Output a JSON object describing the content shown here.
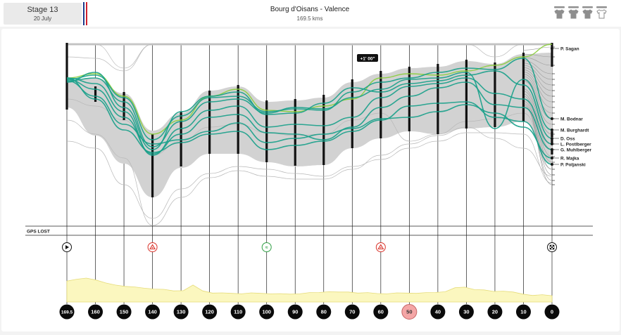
{
  "stage": {
    "name": "Stage 13",
    "date": "20 July"
  },
  "route": {
    "title": "Bourg d'Oisans - Valence",
    "distance": "169.5 kms"
  },
  "flag_colors": [
    "#1b3a8c",
    "#ffffff",
    "#d0202e"
  ],
  "jerseys": [
    {
      "icon": "jersey-icon",
      "color": "#8e8e8e"
    },
    {
      "icon": "jersey-icon",
      "color": "#8e8e8e"
    },
    {
      "icon": "jersey-icon",
      "color": "#8e8e8e"
    },
    {
      "icon": "jersey-outline-icon",
      "color": "#8e8e8e"
    }
  ],
  "gap_badge": "+1' 00\"",
  "gps_lost_label": "GPS LOST",
  "riders": [
    "P. Sagan",
    "M. Bodnar",
    "M. Burghardt",
    "D. Oss",
    "L. Postlberger",
    "G. Muhlberger",
    "R. Majka",
    "P. Poljanski"
  ],
  "km_markers": [
    "169.5",
    "160",
    "150",
    "140",
    "130",
    "120",
    "110",
    "100",
    "90",
    "80",
    "70",
    "60",
    "50",
    "40",
    "30",
    "20",
    "10",
    "0"
  ],
  "current_marker": "50",
  "race_icons": [
    {
      "km": "169.5",
      "icon": "start-icon"
    },
    {
      "km": "140",
      "icon": "climb-icon"
    },
    {
      "km": "100",
      "icon": "sprint-icon"
    },
    {
      "km": "60",
      "icon": "climb-icon"
    },
    {
      "km": "0",
      "icon": "finish-icon"
    }
  ],
  "colors": {
    "group_band": "#d2d2d2",
    "rider_teal": "#17a08a",
    "rider_green": "#8ccf3f",
    "profile_fill": "#fbf7bf",
    "profile_stroke": "#e6dc7a",
    "highlight_marker": "#f4a6a6",
    "climb_red": "#d9342b",
    "sprint_green": "#2f9e44"
  },
  "profile_elevation": [
    0.8,
    0.84,
    0.9,
    0.84,
    0.7,
    0.64,
    0.6,
    0.55,
    0.52,
    0.5,
    0.46,
    0.42,
    0.44,
    0.62,
    0.42,
    0.35,
    0.33,
    0.33,
    0.32,
    0.33,
    0.33,
    0.32,
    0.3,
    0.3,
    0.32,
    0.34,
    0.36,
    0.4,
    0.36,
    0.38,
    0.35,
    0.34,
    0.32,
    0.32,
    0.33,
    0.34,
    0.34,
    0.34,
    0.36,
    0.4,
    0.52,
    0.56,
    0.48,
    0.44,
    0.4,
    0.42,
    0.36,
    0.3,
    0.26,
    0.26,
    0.24
  ]
}
